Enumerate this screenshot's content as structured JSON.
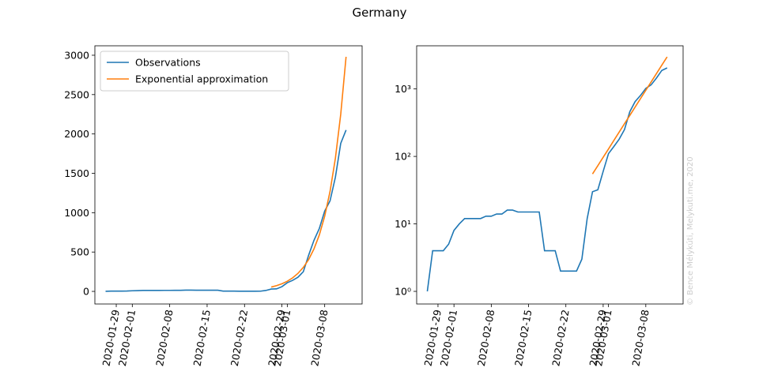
{
  "title": "Germany",
  "watermark": "© Bence Mélykúti, Melykuti.me, 2020",
  "chart_data": [
    {
      "type": "line",
      "x": [
        "2020-01-27",
        "2020-01-28",
        "2020-01-29",
        "2020-01-30",
        "2020-01-31",
        "2020-02-01",
        "2020-02-02",
        "2020-02-03",
        "2020-02-04",
        "2020-02-05",
        "2020-02-06",
        "2020-02-07",
        "2020-02-08",
        "2020-02-09",
        "2020-02-10",
        "2020-02-11",
        "2020-02-12",
        "2020-02-13",
        "2020-02-14",
        "2020-02-15",
        "2020-02-16",
        "2020-02-17",
        "2020-02-18",
        "2020-02-19",
        "2020-02-20",
        "2020-02-21",
        "2020-02-22",
        "2020-02-23",
        "2020-02-24",
        "2020-02-25",
        "2020-02-26",
        "2020-02-27",
        "2020-02-28",
        "2020-02-29",
        "2020-03-01",
        "2020-03-02",
        "2020-03-03",
        "2020-03-04",
        "2020-03-05",
        "2020-03-06",
        "2020-03-07",
        "2020-03-08",
        "2020-03-09",
        "2020-03-10",
        "2020-03-11",
        "2020-03-12"
      ],
      "series": [
        {
          "name": "Observations",
          "color": "#1f77b4",
          "values": [
            1,
            4,
            4,
            4,
            5,
            8,
            10,
            12,
            12,
            12,
            12,
            13,
            13,
            14,
            14,
            16,
            16,
            15,
            15,
            15,
            15,
            15,
            4,
            4,
            4,
            2,
            2,
            2,
            2,
            3,
            12,
            30,
            32,
            60,
            110,
            140,
            180,
            250,
            460,
            650,
            800,
            1020,
            1150,
            1450,
            1880,
            2050
          ]
        },
        {
          "name": "Exponential approximation",
          "color": "#ff7f0e",
          "values": [
            null,
            null,
            null,
            null,
            null,
            null,
            null,
            null,
            null,
            null,
            null,
            null,
            null,
            null,
            null,
            null,
            null,
            null,
            null,
            null,
            null,
            null,
            null,
            null,
            null,
            null,
            null,
            null,
            null,
            null,
            null,
            55,
            73,
            97,
            129,
            172,
            229,
            305,
            405,
            540,
            718,
            955,
            1270,
            1690,
            2250,
            2980
          ]
        }
      ],
      "xlim": [
        "2020-01-25",
        "2020-03-15"
      ],
      "xticks": [
        "2020-01-29",
        "2020-02-01",
        "2020-02-08",
        "2020-02-15",
        "2020-02-22",
        "2020-02-29",
        "2020-03-01",
        "2020-03-08"
      ],
      "ylim": [
        -160,
        3120
      ],
      "yticks": [
        0,
        500,
        1000,
        1500,
        2000,
        2500,
        3000
      ],
      "yscale": "linear",
      "legend": "upper left"
    },
    {
      "type": "line",
      "x": [
        "2020-01-27",
        "2020-01-28",
        "2020-01-29",
        "2020-01-30",
        "2020-01-31",
        "2020-02-01",
        "2020-02-02",
        "2020-02-03",
        "2020-02-04",
        "2020-02-05",
        "2020-02-06",
        "2020-02-07",
        "2020-02-08",
        "2020-02-09",
        "2020-02-10",
        "2020-02-11",
        "2020-02-12",
        "2020-02-13",
        "2020-02-14",
        "2020-02-15",
        "2020-02-16",
        "2020-02-17",
        "2020-02-18",
        "2020-02-19",
        "2020-02-20",
        "2020-02-21",
        "2020-02-22",
        "2020-02-23",
        "2020-02-24",
        "2020-02-25",
        "2020-02-26",
        "2020-02-27",
        "2020-02-28",
        "2020-02-29",
        "2020-03-01",
        "2020-03-02",
        "2020-03-03",
        "2020-03-04",
        "2020-03-05",
        "2020-03-06",
        "2020-03-07",
        "2020-03-08",
        "2020-03-09",
        "2020-03-10",
        "2020-03-11",
        "2020-03-12"
      ],
      "series": [
        {
          "color": "#1f77b4",
          "values": [
            1,
            4,
            4,
            4,
            5,
            8,
            10,
            12,
            12,
            12,
            12,
            13,
            13,
            14,
            14,
            16,
            16,
            15,
            15,
            15,
            15,
            15,
            4,
            4,
            4,
            2,
            2,
            2,
            2,
            3,
            12,
            30,
            32,
            60,
            110,
            140,
            180,
            250,
            460,
            650,
            800,
            1020,
            1150,
            1450,
            1880,
            2050
          ]
        },
        {
          "color": "#ff7f0e",
          "values": [
            null,
            null,
            null,
            null,
            null,
            null,
            null,
            null,
            null,
            null,
            null,
            null,
            null,
            null,
            null,
            null,
            null,
            null,
            null,
            null,
            null,
            null,
            null,
            null,
            null,
            null,
            null,
            null,
            null,
            null,
            null,
            55,
            73,
            97,
            129,
            172,
            229,
            305,
            405,
            540,
            718,
            955,
            1270,
            1690,
            2250,
            2980
          ]
        }
      ],
      "xlim": [
        "2020-01-25",
        "2020-03-15"
      ],
      "xticks": [
        "2020-01-29",
        "2020-02-01",
        "2020-02-08",
        "2020-02-15",
        "2020-02-22",
        "2020-02-29",
        "2020-03-01",
        "2020-03-08"
      ],
      "ylim": [
        0.65,
        4360
      ],
      "yticks": [
        {
          "value": 1,
          "label": "10⁰"
        },
        {
          "value": 10,
          "label": "10¹"
        },
        {
          "value": 100,
          "label": "10²"
        },
        {
          "value": 1000,
          "label": "10³"
        }
      ],
      "yscale": "log"
    }
  ]
}
